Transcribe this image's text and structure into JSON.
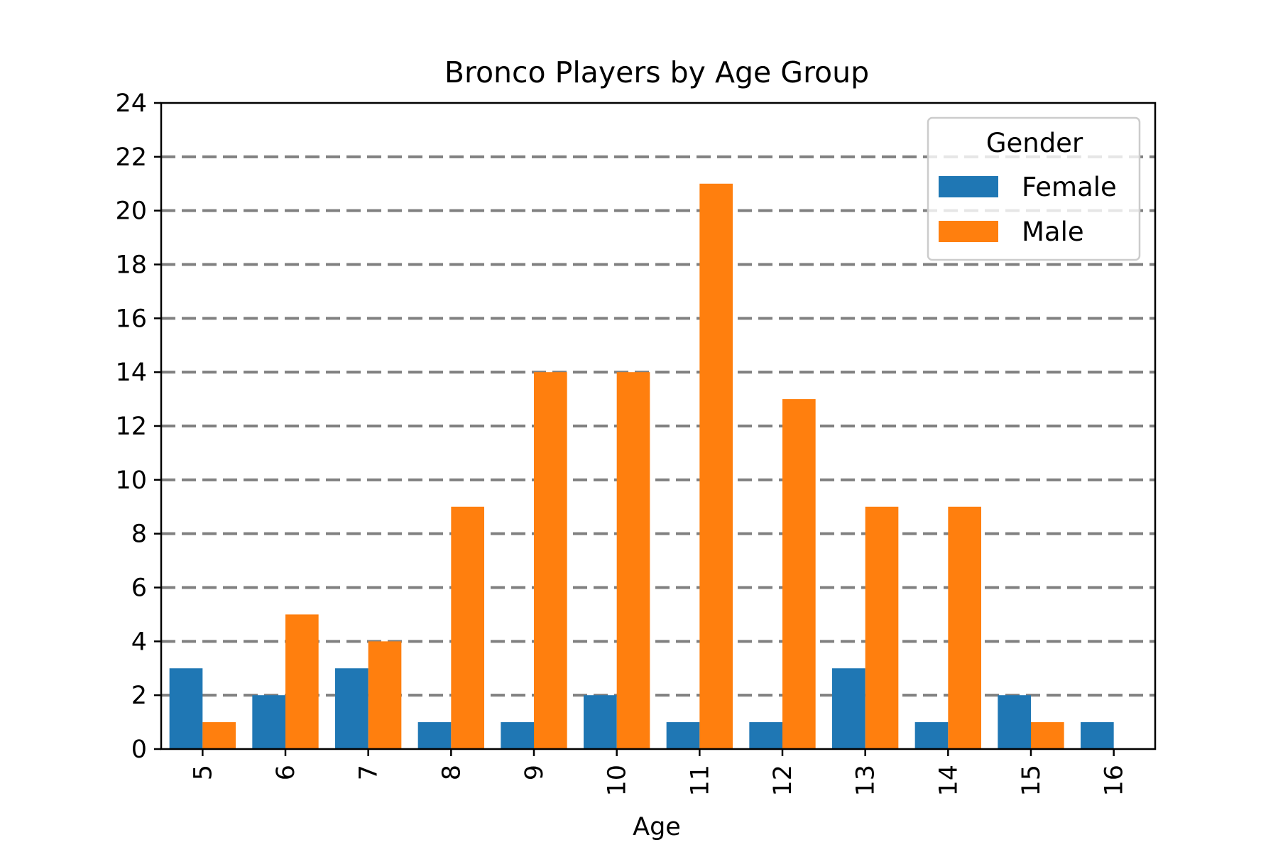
{
  "chart_data": {
    "type": "bar",
    "title": "Bronco Players by Age Group",
    "xlabel": "Age",
    "ylabel": "",
    "categories": [
      "5",
      "6",
      "7",
      "8",
      "9",
      "10",
      "11",
      "12",
      "13",
      "14",
      "15",
      "16"
    ],
    "series": [
      {
        "name": "Female",
        "color": "#1f77b4",
        "values": [
          3,
          2,
          3,
          1,
          1,
          2,
          1,
          1,
          3,
          1,
          2,
          1
        ]
      },
      {
        "name": "Male",
        "color": "#ff7f0e",
        "values": [
          1,
          5,
          4,
          9,
          14,
          14,
          21,
          13,
          9,
          9,
          1,
          0
        ]
      }
    ],
    "ylim": [
      0,
      24
    ],
    "yticks": [
      0,
      2,
      4,
      6,
      8,
      10,
      12,
      14,
      16,
      18,
      20,
      22,
      24
    ],
    "grid": true,
    "legend": {
      "title": "Gender",
      "placement": "top-right"
    }
  }
}
